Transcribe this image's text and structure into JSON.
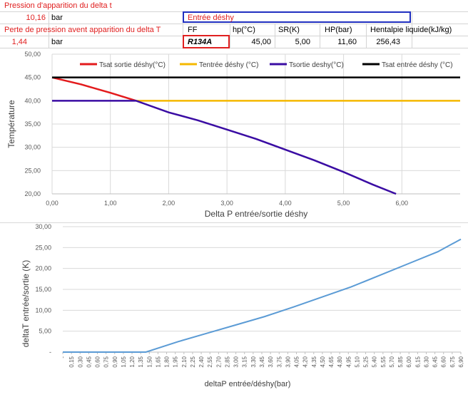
{
  "sheet": {
    "row1_label": "Pression d'apparition du delta t",
    "row2_value": "10,16",
    "row2_unit": "bar",
    "entree_label": "Entrée déshy",
    "row3_label": "Perte de pression avent apparition du delta T",
    "row3_headers": [
      "FF",
      "hp(°C)",
      "SR(K)",
      "HP(bar)",
      "Hentalpie liquide(kJ/kg)"
    ],
    "row4_value": "1,44",
    "row4_unit": "bar",
    "row4_values": [
      "R134A",
      "45,00",
      "5,00",
      "11,60",
      "256,43"
    ],
    "colors": {
      "red": "#e02020",
      "blue": "#2030c0"
    }
  },
  "chart_data": [
    {
      "type": "line",
      "title": "",
      "xlabel": "Delta P entrée/sortie déshy",
      "ylabel": "Température",
      "xlim": [
        0,
        7
      ],
      "ylim": [
        20,
        50
      ],
      "xticks": [
        "0,00",
        "1,00",
        "2,00",
        "3,00",
        "4,00",
        "5,00",
        "6,00"
      ],
      "yticks": [
        "20,00",
        "25,00",
        "30,00",
        "35,00",
        "40,00",
        "45,00",
        "50,00"
      ],
      "legend": "top",
      "grid": true,
      "series": [
        {
          "name": "Tsat sortie déshy(°C)",
          "color": "#e31a1c",
          "x": [
            0,
            0.5,
            1.0,
            1.44
          ],
          "y": [
            45,
            43.5,
            41.7,
            40.0
          ]
        },
        {
          "name": "Tentrée déshy (°C)",
          "color": "#f5b800",
          "x": [
            1.44,
            7.0
          ],
          "y": [
            40,
            40
          ]
        },
        {
          "name": "Tsortie deshy(°C)",
          "color": "#3a0ca3",
          "x": [
            0,
            1.44,
            2.0,
            2.5,
            3.0,
            3.5,
            4.0,
            4.5,
            5.0,
            5.5,
            5.9
          ],
          "y": [
            40,
            40,
            37.5,
            35.8,
            33.8,
            31.8,
            29.5,
            27.2,
            24.7,
            22.0,
            20.0
          ]
        },
        {
          "name": "Tsat entrée déshy (°C)",
          "color": "#000000",
          "x": [
            0,
            7
          ],
          "y": [
            45,
            45
          ]
        }
      ]
    },
    {
      "type": "line",
      "title": "",
      "xlabel": "deltaP entrée/déshy(bar)",
      "ylabel": "deltaT entrée/sortie (K)",
      "ylim": [
        0,
        30
      ],
      "yticks": [
        "-",
        "5,00",
        "10,00",
        "15,00",
        "20,00",
        "25,00",
        "30,00"
      ],
      "xticks": [
        "-",
        "0,15",
        "0,30",
        "0,45",
        "0,60",
        "0,75",
        "0,90",
        "1,05",
        "1,20",
        "1,35",
        "1,50",
        "1,65",
        "1,80",
        "1,95",
        "2,10",
        "2,25",
        "2,40",
        "2,55",
        "2,70",
        "2,85",
        "3,00",
        "3,15",
        "3,30",
        "3,45",
        "3,60",
        "3,75",
        "3,90",
        "4,05",
        "4,20",
        "4,35",
        "4,50",
        "4,65",
        "4,80",
        "4,95",
        "5,10",
        "5,25",
        "5,40",
        "5,55",
        "5,70",
        "5,85",
        "6,00",
        "6,15",
        "6,30",
        "6,45",
        "6,60",
        "6,75",
        "6,90"
      ],
      "grid": true,
      "series": [
        {
          "color": "#5b9bd5",
          "x": [
            0,
            1.44,
            2.0,
            2.5,
            3.0,
            3.5,
            4.0,
            4.5,
            5.0,
            5.5,
            6.0,
            6.5,
            7.0
          ],
          "y": [
            0,
            0,
            2.5,
            4.5,
            6.5,
            8.5,
            10.8,
            13.2,
            15.6,
            18.4,
            21.2,
            24.0,
            27.0
          ]
        }
      ]
    }
  ]
}
